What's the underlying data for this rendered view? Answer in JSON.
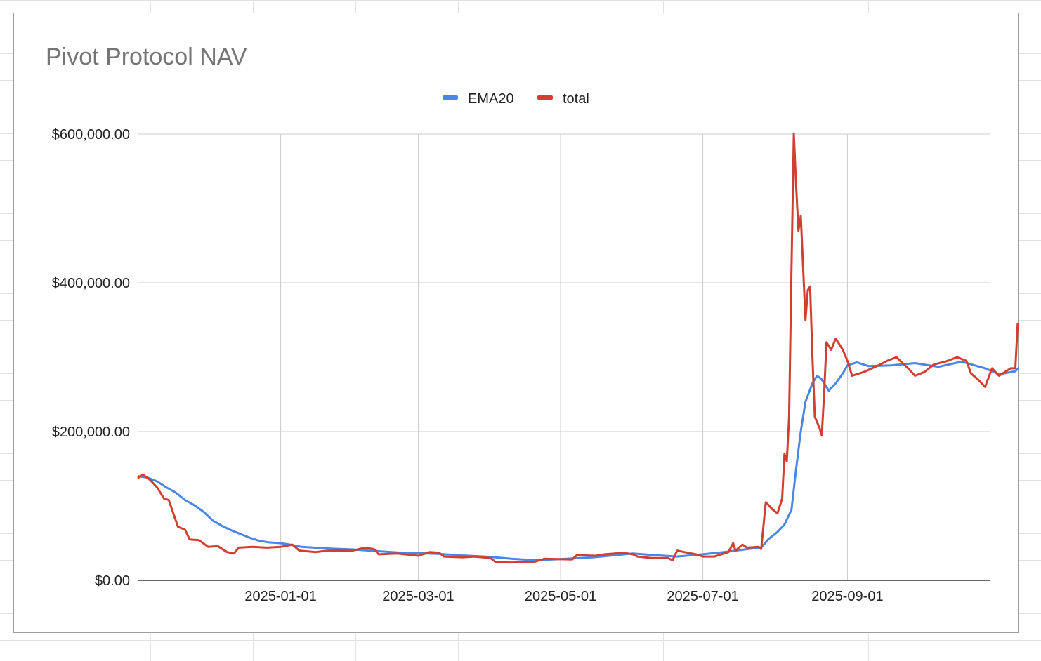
{
  "chart_data": {
    "type": "line",
    "title": "Pivot Protocol NAV",
    "xlabel": "",
    "ylabel": "",
    "x_range": [
      "2024-11-01",
      "2025-11-01"
    ],
    "ylim": [
      0,
      600000
    ],
    "y_ticks": [
      0,
      200000,
      400000,
      600000
    ],
    "y_tick_labels": [
      "$0.00",
      "$200,000.00",
      "$400,000.00",
      "$600,000.00"
    ],
    "x_ticks": [
      "2025-01-01",
      "2025-03-01",
      "2025-05-01",
      "2025-07-01",
      "2025-09-01"
    ],
    "x_tick_labels": [
      "2025-01-01",
      "2025-03-01",
      "2025-05-01",
      "2025-07-01",
      "2025-09-01"
    ],
    "grid": true,
    "legend_position": "top",
    "series": [
      {
        "name": "EMA20",
        "color": "#4a86e8",
        "points": [
          [
            "2024-11-01",
            140000
          ],
          [
            "2024-11-05",
            138000
          ],
          [
            "2024-11-09",
            133000
          ],
          [
            "2024-11-13",
            125000
          ],
          [
            "2024-11-17",
            118000
          ],
          [
            "2024-11-21",
            108000
          ],
          [
            "2024-11-25",
            101000
          ],
          [
            "2024-11-29",
            92000
          ],
          [
            "2024-12-03",
            80000
          ],
          [
            "2024-12-07",
            73000
          ],
          [
            "2024-12-11",
            67000
          ],
          [
            "2024-12-15",
            62000
          ],
          [
            "2024-12-19",
            57000
          ],
          [
            "2024-12-23",
            53000
          ],
          [
            "2024-12-27",
            51000
          ],
          [
            "2025-01-01",
            50000
          ],
          [
            "2025-01-05",
            48000
          ],
          [
            "2025-01-10",
            45000
          ],
          [
            "2025-01-20",
            43000
          ],
          [
            "2025-02-01",
            41500
          ],
          [
            "2025-02-10",
            39500
          ],
          [
            "2025-02-20",
            37500
          ],
          [
            "2025-03-01",
            36500
          ],
          [
            "2025-03-10",
            35500
          ],
          [
            "2025-03-20",
            33500
          ],
          [
            "2025-04-01",
            31500
          ],
          [
            "2025-04-10",
            29000
          ],
          [
            "2025-04-20",
            27000
          ],
          [
            "2025-05-01",
            28500
          ],
          [
            "2025-05-15",
            31000
          ],
          [
            "2025-06-01",
            36000
          ],
          [
            "2025-06-10",
            34000
          ],
          [
            "2025-06-20",
            32000
          ],
          [
            "2025-07-01",
            35000
          ],
          [
            "2025-07-10",
            38000
          ],
          [
            "2025-07-20",
            42000
          ],
          [
            "2025-07-26",
            44000
          ],
          [
            "2025-07-29",
            55000
          ],
          [
            "2025-08-02",
            65000
          ],
          [
            "2025-08-05",
            75000
          ],
          [
            "2025-08-08",
            95000
          ],
          [
            "2025-08-10",
            150000
          ],
          [
            "2025-08-12",
            200000
          ],
          [
            "2025-08-14",
            240000
          ],
          [
            "2025-08-17",
            265000
          ],
          [
            "2025-08-19",
            275000
          ],
          [
            "2025-08-21",
            270000
          ],
          [
            "2025-08-24",
            255000
          ],
          [
            "2025-08-27",
            265000
          ],
          [
            "2025-08-30",
            278000
          ],
          [
            "2025-09-01",
            289000
          ],
          [
            "2025-09-05",
            293000
          ],
          [
            "2025-09-10",
            288000
          ],
          [
            "2025-09-20",
            289000
          ],
          [
            "2025-09-30",
            292000
          ],
          [
            "2025-10-10",
            287000
          ],
          [
            "2025-10-20",
            294000
          ],
          [
            "2025-10-30",
            285000
          ],
          [
            "2025-11-05",
            277000
          ],
          [
            "2025-11-12",
            281000
          ],
          [
            "2025-11-17",
            297000
          ]
        ]
      },
      {
        "name": "total",
        "color": "#d23f31",
        "points": [
          [
            "2024-11-01",
            138000
          ],
          [
            "2024-11-03",
            142000
          ],
          [
            "2024-11-06",
            135000
          ],
          [
            "2024-11-09",
            125000
          ],
          [
            "2024-11-12",
            110000
          ],
          [
            "2024-11-14",
            108000
          ],
          [
            "2024-11-16",
            90000
          ],
          [
            "2024-11-18",
            72000
          ],
          [
            "2024-11-21",
            68000
          ],
          [
            "2024-11-23",
            55000
          ],
          [
            "2024-11-27",
            54000
          ],
          [
            "2024-12-01",
            45000
          ],
          [
            "2024-12-05",
            46000
          ],
          [
            "2024-12-09",
            38000
          ],
          [
            "2024-12-12",
            36000
          ],
          [
            "2024-12-14",
            44000
          ],
          [
            "2024-12-20",
            45000
          ],
          [
            "2024-12-26",
            44000
          ],
          [
            "2025-01-01",
            45000
          ],
          [
            "2025-01-06",
            48000
          ],
          [
            "2025-01-09",
            40000
          ],
          [
            "2025-01-16",
            38000
          ],
          [
            "2025-01-21",
            40000
          ],
          [
            "2025-02-01",
            40000
          ],
          [
            "2025-02-06",
            44000
          ],
          [
            "2025-02-10",
            42000
          ],
          [
            "2025-02-12",
            35000
          ],
          [
            "2025-02-20",
            36000
          ],
          [
            "2025-03-01",
            33000
          ],
          [
            "2025-03-06",
            38000
          ],
          [
            "2025-03-10",
            37000
          ],
          [
            "2025-03-12",
            32000
          ],
          [
            "2025-03-20",
            31000
          ],
          [
            "2025-03-25",
            32000
          ],
          [
            "2025-04-01",
            30000
          ],
          [
            "2025-04-03",
            25000
          ],
          [
            "2025-04-10",
            24000
          ],
          [
            "2025-04-20",
            25000
          ],
          [
            "2025-04-24",
            29000
          ],
          [
            "2025-05-06",
            28000
          ],
          [
            "2025-05-08",
            34000
          ],
          [
            "2025-05-16",
            33000
          ],
          [
            "2025-05-20",
            35000
          ],
          [
            "2025-05-28",
            37000
          ],
          [
            "2025-06-01",
            35000
          ],
          [
            "2025-06-03",
            32000
          ],
          [
            "2025-06-09",
            30000
          ],
          [
            "2025-06-16",
            30000
          ],
          [
            "2025-06-18",
            27000
          ],
          [
            "2025-06-20",
            40000
          ],
          [
            "2025-06-23",
            38000
          ],
          [
            "2025-06-28",
            35000
          ],
          [
            "2025-07-01",
            32000
          ],
          [
            "2025-07-06",
            32000
          ],
          [
            "2025-07-10",
            36000
          ],
          [
            "2025-07-12",
            38000
          ],
          [
            "2025-07-14",
            50000
          ],
          [
            "2025-07-15",
            40000
          ],
          [
            "2025-07-18",
            48000
          ],
          [
            "2025-07-20",
            44000
          ],
          [
            "2025-07-25",
            45000
          ],
          [
            "2025-07-26",
            42000
          ],
          [
            "2025-07-28",
            105000
          ],
          [
            "2025-07-31",
            95000
          ],
          [
            "2025-08-02",
            90000
          ],
          [
            "2025-08-04",
            110000
          ],
          [
            "2025-08-05",
            170000
          ],
          [
            "2025-08-06",
            160000
          ],
          [
            "2025-08-07",
            220000
          ],
          [
            "2025-08-08",
            420000
          ],
          [
            "2025-08-09",
            600000
          ],
          [
            "2025-08-10",
            530000
          ],
          [
            "2025-08-11",
            470000
          ],
          [
            "2025-08-12",
            490000
          ],
          [
            "2025-08-13",
            420000
          ],
          [
            "2025-08-14",
            350000
          ],
          [
            "2025-08-15",
            390000
          ],
          [
            "2025-08-16",
            395000
          ],
          [
            "2025-08-17",
            300000
          ],
          [
            "2025-08-18",
            220000
          ],
          [
            "2025-08-20",
            205000
          ],
          [
            "2025-08-21",
            195000
          ],
          [
            "2025-08-22",
            250000
          ],
          [
            "2025-08-23",
            320000
          ],
          [
            "2025-08-25",
            310000
          ],
          [
            "2025-08-27",
            325000
          ],
          [
            "2025-08-30",
            310000
          ],
          [
            "2025-09-01",
            295000
          ],
          [
            "2025-09-03",
            275000
          ],
          [
            "2025-09-08",
            280000
          ],
          [
            "2025-09-15",
            290000
          ],
          [
            "2025-09-18",
            295000
          ],
          [
            "2025-09-22",
            300000
          ],
          [
            "2025-09-27",
            285000
          ],
          [
            "2025-09-30",
            275000
          ],
          [
            "2025-10-04",
            280000
          ],
          [
            "2025-10-08",
            290000
          ],
          [
            "2025-10-14",
            295000
          ],
          [
            "2025-10-18",
            300000
          ],
          [
            "2025-10-22",
            295000
          ],
          [
            "2025-10-24",
            278000
          ],
          [
            "2025-10-27",
            270000
          ],
          [
            "2025-10-30",
            260000
          ],
          [
            "2025-11-02",
            285000
          ],
          [
            "2025-11-05",
            275000
          ],
          [
            "2025-11-10",
            285000
          ],
          [
            "2025-11-12",
            285000
          ],
          [
            "2025-11-13",
            345000
          ],
          [
            "2025-11-15",
            340000
          ],
          [
            "2025-11-17",
            340000
          ]
        ]
      }
    ]
  }
}
